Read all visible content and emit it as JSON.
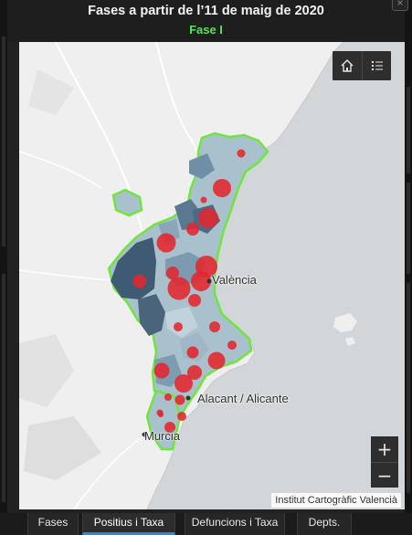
{
  "panel": {
    "title": "Fases a partir de l’11 de maig de 2020",
    "subtitle": "Fase I",
    "close_glyph": "×"
  },
  "map": {
    "labels": {
      "valencia": "València",
      "alicante": "Alacant / Alicante",
      "murcia": "Murcia"
    },
    "attribution": "Institut Cartogràfic Valencià",
    "zoom_in": "+",
    "zoom_out": "−",
    "home_icon": "home-icon",
    "list_icon": "list-icon",
    "highlight_color": "#6fe63c",
    "marker_color": "#e3262e"
  },
  "tabs": [
    {
      "label": "Fases",
      "active": false
    },
    {
      "label": "Positius i Taxa",
      "active": true
    },
    {
      "label": "Defuncions i Taxa",
      "active": false
    },
    {
      "label": "Depts.",
      "active": false
    }
  ]
}
